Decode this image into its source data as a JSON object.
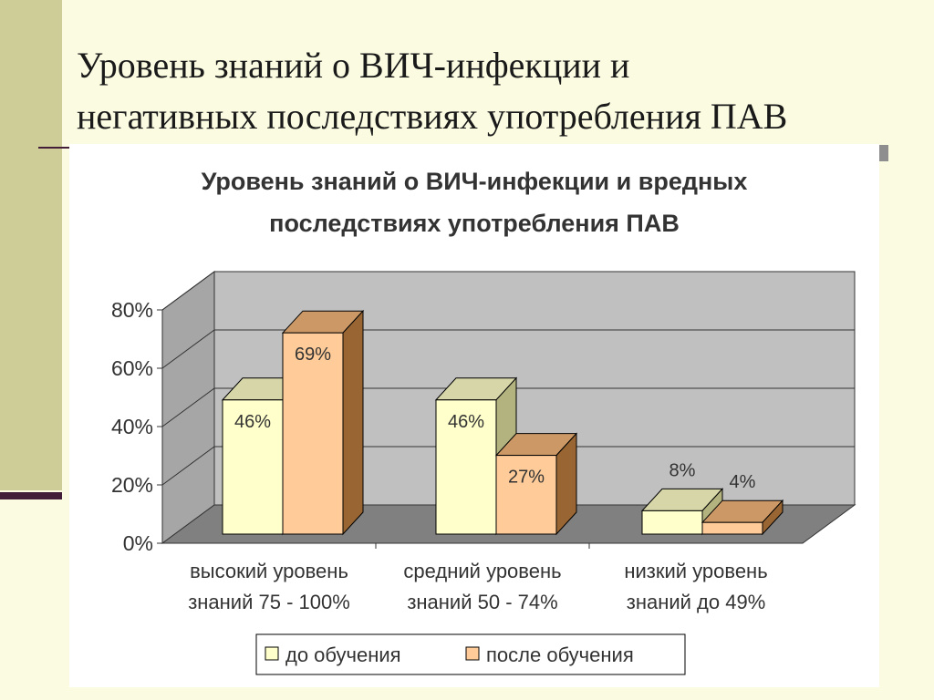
{
  "slide": {
    "title_line1": "Уровень знаний о ВИЧ-инфекции и",
    "title_line2": "негативных последствиях употребления ПАВ"
  },
  "chart_data": {
    "type": "bar",
    "title_line1": "Уровень знаний о ВИЧ-инфекции и вредных",
    "title_line2": "последствиях употребления ПАВ",
    "categories": [
      [
        "высокий уровень",
        "знаний 75 - 100%"
      ],
      [
        "средний уровень",
        "знаний 50 - 74%"
      ],
      [
        "низкий уровень",
        "знаний до 49%"
      ]
    ],
    "series": [
      {
        "name": "до обучения",
        "values": [
          46,
          46,
          8
        ],
        "labels": [
          "46%",
          "46%",
          "8%"
        ],
        "color": "#FFFFCC",
        "top_color": "#D6D6A8",
        "side_color": "#B3B37F"
      },
      {
        "name": "после обучения",
        "values": [
          69,
          27,
          4
        ],
        "labels": [
          "69%",
          "27%",
          "4%"
        ],
        "color": "#FFCC99",
        "top_color": "#CC9966",
        "side_color": "#996633"
      }
    ],
    "y_ticks": [
      "0%",
      "20%",
      "40%",
      "60%",
      "80%"
    ],
    "ylim": [
      0,
      80
    ],
    "grid": true,
    "legend_position": "bottom",
    "wall_color": "#C0C0C0",
    "floor_color": "#808080"
  }
}
